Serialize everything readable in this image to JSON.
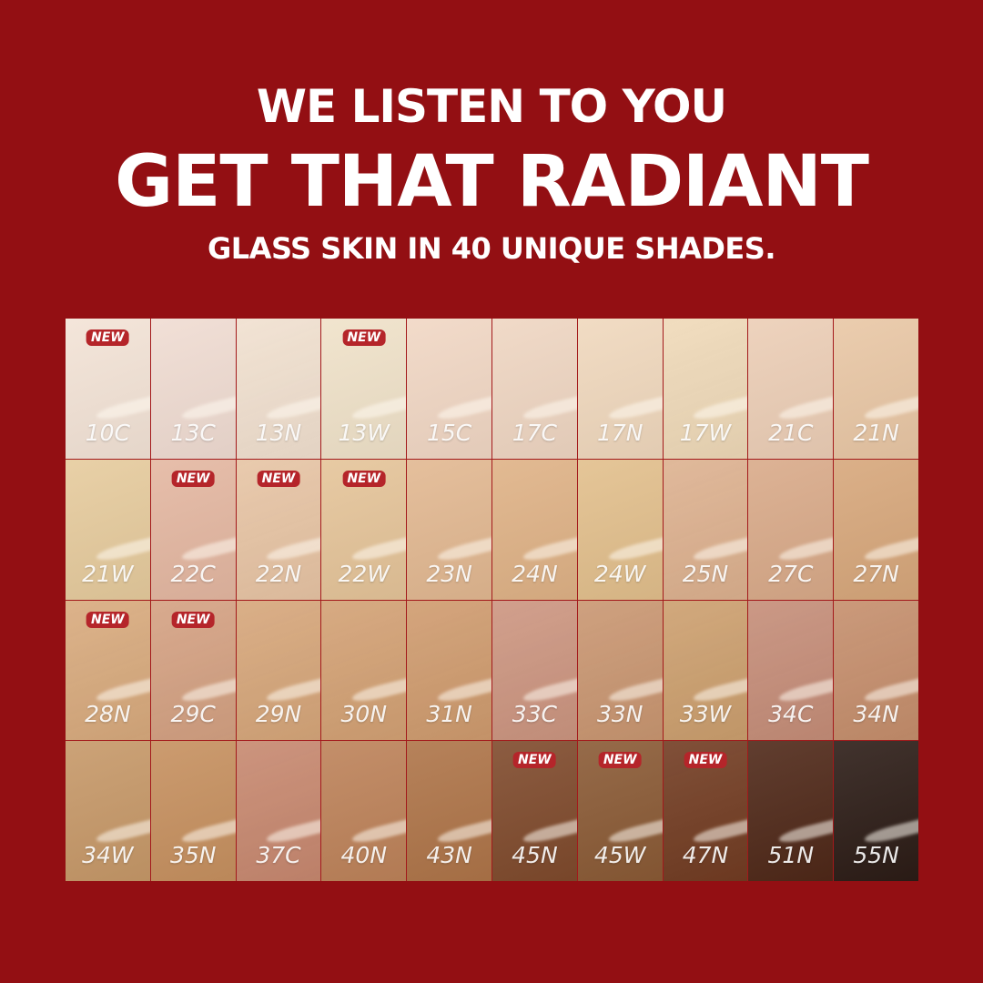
{
  "headline": {
    "line1": "WE LISTEN TO YOU",
    "line2": "GET THAT RADIANT",
    "line3": "GLASS SKIN IN 40 UNIQUE SHADES."
  },
  "background_color": "#930f13",
  "new_badge_label": "NEW",
  "shades": [
    {
      "name": "10C",
      "color": "#f3e3d6",
      "new": true
    },
    {
      "name": "13C",
      "color": "#f0dcd2",
      "new": false
    },
    {
      "name": "13N",
      "color": "#f1e0cf",
      "new": false
    },
    {
      "name": "13W",
      "color": "#f0e2c9",
      "new": true
    },
    {
      "name": "15C",
      "color": "#f1d7c4",
      "new": false
    },
    {
      "name": "17C",
      "color": "#efd6c2",
      "new": false
    },
    {
      "name": "17N",
      "color": "#f0d8bd",
      "new": false
    },
    {
      "name": "17W",
      "color": "#efd9b8",
      "new": false
    },
    {
      "name": "21C",
      "color": "#ecceb6",
      "new": false
    },
    {
      "name": "21N",
      "color": "#e9c7a5",
      "new": false
    },
    {
      "name": "21W",
      "color": "#e6cb9d",
      "new": false
    },
    {
      "name": "22C",
      "color": "#e4b7a1",
      "new": true
    },
    {
      "name": "22N",
      "color": "#e7c4a4",
      "new": true
    },
    {
      "name": "22W",
      "color": "#e5c499",
      "new": true
    },
    {
      "name": "23N",
      "color": "#e2b891",
      "new": false
    },
    {
      "name": "24N",
      "color": "#dfb286",
      "new": false
    },
    {
      "name": "24W",
      "color": "#e2bf8c",
      "new": false
    },
    {
      "name": "25N",
      "color": "#ddb18f",
      "new": false
    },
    {
      "name": "27C",
      "color": "#d9aa89",
      "new": false
    },
    {
      "name": "27N",
      "color": "#d7a77b",
      "new": false
    },
    {
      "name": "28N",
      "color": "#d8aa7d",
      "new": true
    },
    {
      "name": "29C",
      "color": "#d4a182",
      "new": true
    },
    {
      "name": "29N",
      "color": "#d6a67a",
      "new": false
    },
    {
      "name": "30N",
      "color": "#d3a174",
      "new": false
    },
    {
      "name": "31N",
      "color": "#cf9b6e",
      "new": false
    },
    {
      "name": "33C",
      "color": "#cc9580",
      "new": false
    },
    {
      "name": "33N",
      "color": "#c99671",
      "new": false
    },
    {
      "name": "33W",
      "color": "#cc9f6e",
      "new": false
    },
    {
      "name": "34C",
      "color": "#c58d78",
      "new": false
    },
    {
      "name": "34N",
      "color": "#c58e6c",
      "new": false
    },
    {
      "name": "34W",
      "color": "#c69868",
      "new": false
    },
    {
      "name": "35N",
      "color": "#c6905f",
      "new": false
    },
    {
      "name": "37C",
      "color": "#c7886f",
      "new": false
    },
    {
      "name": "40N",
      "color": "#bd8259",
      "new": false
    },
    {
      "name": "43N",
      "color": "#ae7448",
      "new": false
    },
    {
      "name": "45N",
      "color": "#7f4a2c",
      "new": true
    },
    {
      "name": "45W",
      "color": "#8a5a35",
      "new": true
    },
    {
      "name": "47N",
      "color": "#723c22",
      "new": true
    },
    {
      "name": "51N",
      "color": "#4f2818",
      "new": false
    },
    {
      "name": "55N",
      "color": "#2c1c16",
      "new": false
    }
  ]
}
